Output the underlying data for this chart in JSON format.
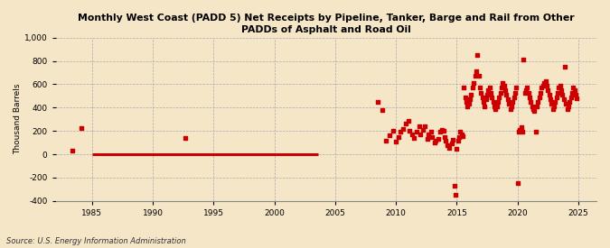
{
  "title": "Monthly West Coast (PADD 5) Net Receipts by Pipeline, Tanker, Barge and Rail from Other\nPADDs of Asphalt and Road Oil",
  "ylabel": "Thousand Barrels",
  "source": "Source: U.S. Energy Information Administration",
  "background_color": "#f5e6c8",
  "plot_bg_color": "#f5e6c8",
  "marker_color": "#cc0000",
  "line_color": "#cc0000",
  "xlim": [
    1982.0,
    2026.5
  ],
  "ylim": [
    -400,
    1000
  ],
  "yticks": [
    -400,
    -200,
    0,
    200,
    400,
    600,
    800,
    1000
  ],
  "xticks": [
    1985,
    1990,
    1995,
    2000,
    2005,
    2010,
    2015,
    2020,
    2025
  ],
  "early_scatter_x": [
    1983.4,
    1984.1
  ],
  "early_scatter_y": [
    32,
    228
  ],
  "zero_line_x": [
    1985.0,
    2003.6
  ],
  "single_point_x": [
    1992.7
  ],
  "single_point_y": [
    142
  ],
  "late_scatter_x": [
    2008.5,
    2008.9,
    2009.2,
    2009.5,
    2009.8,
    2010.0,
    2010.2,
    2010.4,
    2010.6,
    2010.8,
    2011.0,
    2011.1,
    2011.3,
    2011.5,
    2011.7,
    2011.9,
    2012.0,
    2012.2,
    2012.4,
    2012.6,
    2012.7,
    2012.9,
    2013.0,
    2013.2,
    2013.3,
    2013.5,
    2013.6,
    2013.8,
    2013.9,
    2014.0,
    2014.1,
    2014.2,
    2014.4,
    2014.6,
    2014.7,
    2014.8,
    2014.9,
    2015.0,
    2015.1,
    2015.2,
    2015.3,
    2015.4,
    2015.5,
    2015.6,
    2015.7,
    2015.8,
    2015.9,
    2016.0,
    2016.1,
    2016.2,
    2016.3,
    2016.4,
    2016.5,
    2016.6,
    2016.7,
    2016.8,
    2016.9,
    2017.0,
    2017.1,
    2017.2,
    2017.3,
    2017.4,
    2017.5,
    2017.6,
    2017.7,
    2017.8,
    2017.9,
    2018.0,
    2018.1,
    2018.2,
    2018.3,
    2018.4,
    2018.5,
    2018.6,
    2018.7,
    2018.8,
    2018.9,
    2019.0,
    2019.1,
    2019.2,
    2019.3,
    2019.4,
    2019.5,
    2019.6,
    2019.7,
    2019.8,
    2019.9,
    2020.0,
    2020.1,
    2020.2,
    2020.3,
    2020.4,
    2020.5,
    2020.6,
    2020.7,
    2020.8,
    2020.9,
    2021.0,
    2021.1,
    2021.2,
    2021.3,
    2021.4,
    2021.5,
    2021.6,
    2021.7,
    2021.8,
    2021.9,
    2022.0,
    2022.1,
    2022.2,
    2022.3,
    2022.4,
    2022.5,
    2022.6,
    2022.7,
    2022.8,
    2022.9,
    2023.0,
    2023.1,
    2023.2,
    2023.3,
    2023.4,
    2023.5,
    2023.6,
    2023.7,
    2023.8,
    2023.9,
    2024.0,
    2024.1,
    2024.2,
    2024.3,
    2024.4,
    2024.5,
    2024.6,
    2024.7,
    2024.8,
    2024.9
  ],
  "late_scatter_y": [
    450,
    380,
    120,
    160,
    200,
    110,
    150,
    190,
    220,
    260,
    290,
    200,
    170,
    140,
    190,
    240,
    170,
    210,
    240,
    130,
    170,
    190,
    150,
    100,
    115,
    130,
    190,
    210,
    200,
    150,
    115,
    75,
    55,
    95,
    125,
    -270,
    -350,
    45,
    115,
    150,
    190,
    170,
    155,
    570,
    490,
    450,
    410,
    430,
    470,
    510,
    570,
    610,
    670,
    710,
    850,
    670,
    570,
    530,
    490,
    450,
    410,
    470,
    510,
    550,
    570,
    530,
    490,
    450,
    410,
    390,
    410,
    450,
    490,
    530,
    570,
    610,
    590,
    550,
    510,
    470,
    430,
    390,
    410,
    450,
    490,
    530,
    570,
    -250,
    190,
    210,
    230,
    190,
    810,
    530,
    550,
    570,
    530,
    490,
    450,
    410,
    390,
    370,
    190,
    410,
    450,
    490,
    530,
    570,
    590,
    610,
    630,
    590,
    550,
    510,
    470,
    430,
    390,
    410,
    450,
    490,
    530,
    570,
    590,
    550,
    510,
    470,
    750,
    430,
    390,
    410,
    450,
    490,
    530,
    570,
    550,
    510,
    480
  ]
}
